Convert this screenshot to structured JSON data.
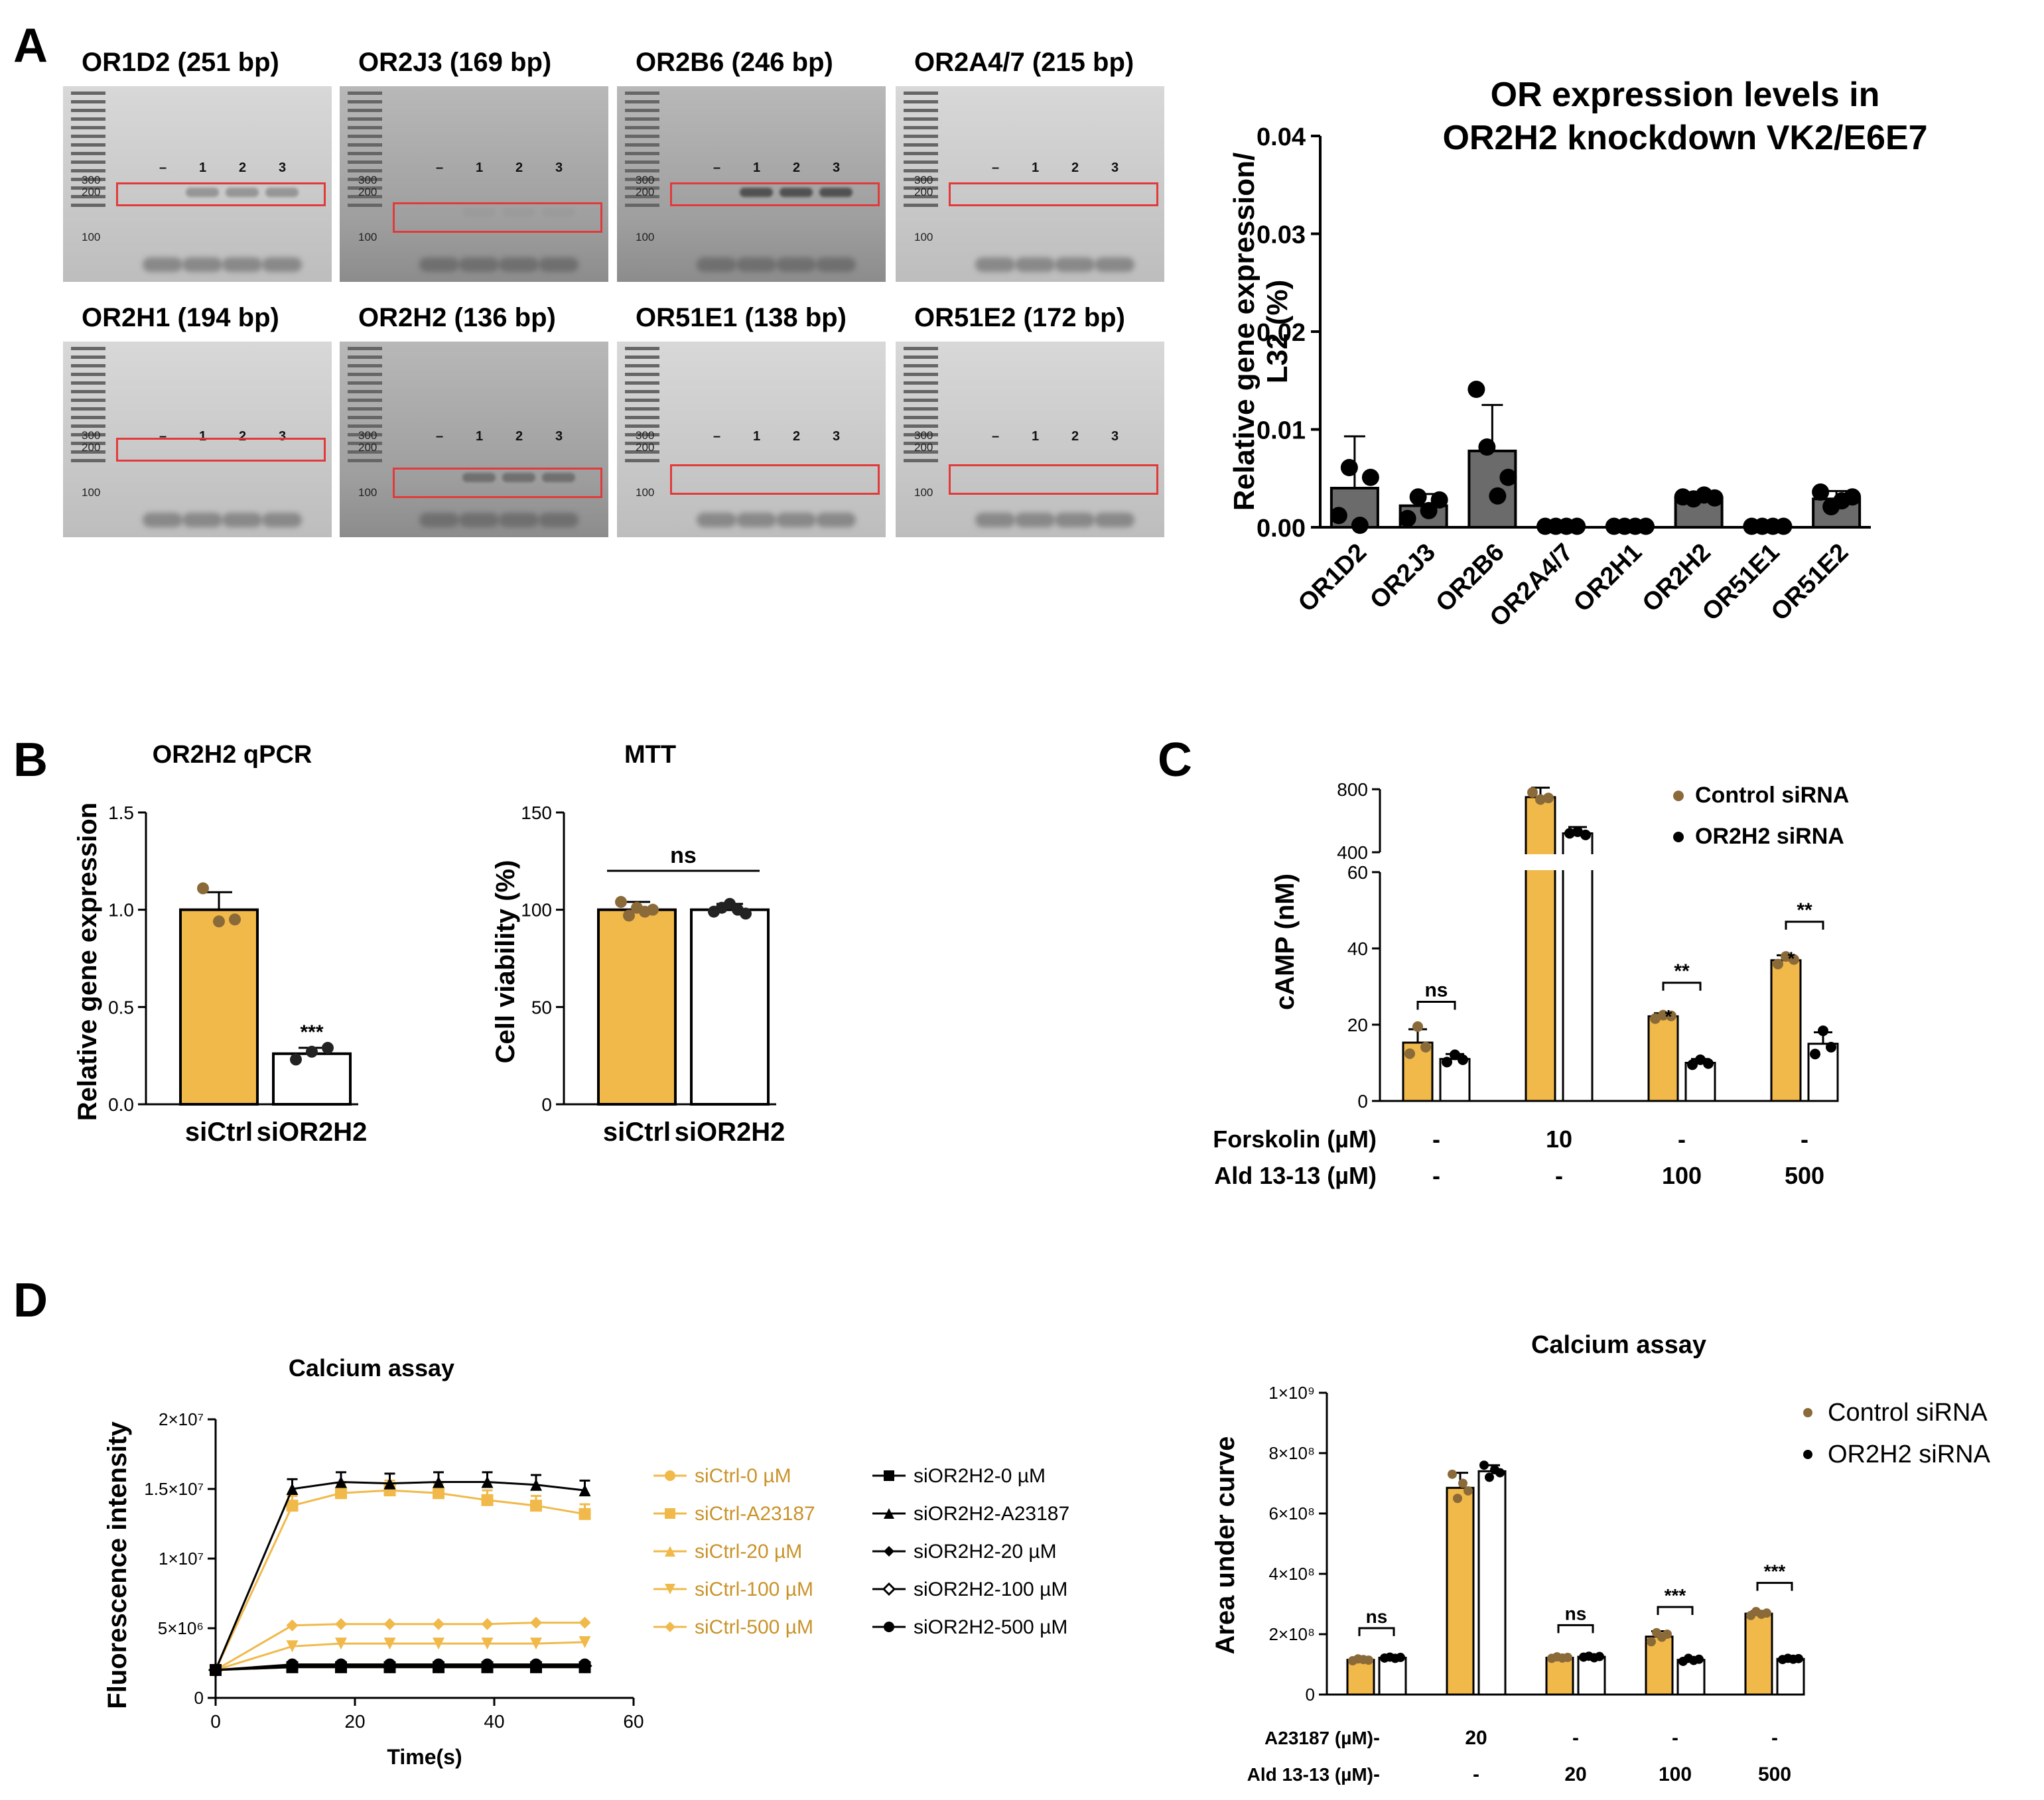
{
  "panels": {
    "A": "A",
    "B": "B",
    "C": "C",
    "D": "D"
  },
  "colors": {
    "gold": "#f0b94a",
    "gold_dot": "#8b6a3a",
    "dark": "#555555",
    "black": "#000000",
    "red": "#e23a3a"
  },
  "gels": [
    {
      "title": "OR1D2 (251 bp)",
      "markers": [
        "300",
        "200",
        "100"
      ],
      "lanes": [
        "–",
        "1",
        "2",
        "3"
      ],
      "band_intensity": 0.45,
      "band_position": "300-200"
    },
    {
      "title": "OR2J3 (169 bp)",
      "markers": [
        "300",
        "200",
        "100"
      ],
      "lanes": [
        "–",
        "1",
        "2",
        "3"
      ],
      "band_intensity": 0.05,
      "band_position": "200"
    },
    {
      "title": "OR2B6 (246 bp)",
      "markers": [
        "300",
        "200",
        "100"
      ],
      "lanes": [
        "–",
        "1",
        "2",
        "3"
      ],
      "band_intensity": 0.95,
      "band_position": "300-200"
    },
    {
      "title": "OR2A4/7 (215 bp)",
      "markers": [
        "300",
        "200",
        "100"
      ],
      "lanes": [
        "–",
        "1",
        "2",
        "3"
      ],
      "band_intensity": 0.0,
      "band_position": "200"
    },
    {
      "title": "OR2H1 (194 bp)",
      "markers": [
        "300",
        "200",
        "100"
      ],
      "lanes": [
        "–",
        "1",
        "2",
        "3"
      ],
      "band_intensity": 0.0,
      "band_position": "200"
    },
    {
      "title": "OR2H2 (136 bp)",
      "markers": [
        "300",
        "200",
        "100"
      ],
      "lanes": [
        "–",
        "1",
        "2",
        "3"
      ],
      "band_intensity": 0.55,
      "band_position": "136"
    },
    {
      "title": "OR51E1 (138 bp)",
      "markers": [
        "300",
        "200",
        "100"
      ],
      "lanes": [
        "–",
        "1",
        "2",
        "3"
      ],
      "band_intensity": 0.0,
      "band_position": "138"
    },
    {
      "title": "OR51E2 (172 bp)",
      "markers": [
        "300",
        "200",
        "100"
      ],
      "lanes": [
        "–",
        "1",
        "2",
        "3"
      ],
      "band_intensity": 0.0,
      "band_position": "172"
    }
  ],
  "chart_data": [
    {
      "id": "A_bar",
      "type": "bar",
      "title": "OR expression levels in OR2H2 knockdown VK2/E6E7",
      "title_lines": [
        "OR expression levels in",
        "OR2H2 knockdown VK2/E6E7"
      ],
      "ylabel_lines": [
        "Relative gene expression/",
        "L32 (%)"
      ],
      "categories": [
        "OR1D2",
        "OR2J3",
        "OR2B6",
        "OR2A4/7",
        "OR2H1",
        "OR2H2",
        "OR51E1",
        "OR51E2"
      ],
      "values": [
        0.004,
        0.0022,
        0.0078,
        0.0001,
        0.0001,
        0.003,
        0.0001,
        0.0029
      ],
      "errors": [
        0.0053,
        0.0012,
        0.0047,
        0.0001,
        0.0001,
        0.0003,
        0.0001,
        0.0008
      ],
      "points": [
        [
          0.0012,
          0.0061,
          0.0002,
          0.0051
        ],
        [
          0.0009,
          0.0031,
          0.0017,
          0.0028
        ],
        [
          0.0141,
          0.0082,
          0.0032,
          0.0051
        ],
        [
          0.0001,
          0.0001,
          0.0001,
          0.0001
        ],
        [
          0.0001,
          0.0001,
          0.0001,
          0.0001
        ],
        [
          0.0031,
          0.0029,
          0.0033,
          0.003
        ],
        [
          0.0001,
          0.0001,
          0.0001,
          0.0001
        ],
        [
          0.0036,
          0.0021,
          0.0027,
          0.0031
        ]
      ],
      "yticks": [
        "0.00",
        "0.01",
        "0.02",
        "0.03",
        "0.04"
      ],
      "ylim": [
        0,
        0.04
      ]
    },
    {
      "id": "B_qpcr",
      "type": "bar",
      "title": "OR2H2 qPCR",
      "ylabel": "Relative gene expression",
      "categories": [
        "siCtrl",
        "siOR2H2"
      ],
      "values": [
        1.0,
        0.26
      ],
      "errors": [
        0.09,
        0.03
      ],
      "points": [
        [
          1.11,
          0.94,
          0.95
        ],
        [
          0.23,
          0.27,
          0.29
        ]
      ],
      "yticks": [
        "0.0",
        "0.5",
        "1.0",
        "1.5"
      ],
      "ylim": [
        0,
        1.5
      ],
      "significance": "***"
    },
    {
      "id": "B_mtt",
      "type": "bar",
      "title": "MTT",
      "ylabel": "Cell viability (%)",
      "categories": [
        "siCtrl",
        "siOR2H2"
      ],
      "values": [
        100,
        100
      ],
      "errors": [
        4,
        3
      ],
      "points": [
        [
          104,
          97,
          101,
          99,
          100
        ],
        [
          99,
          101,
          103,
          100,
          98
        ]
      ],
      "yticks": [
        "0",
        "50",
        "100",
        "150"
      ],
      "ylim": [
        0,
        150
      ],
      "significance": "ns"
    },
    {
      "id": "C_camp",
      "type": "bar",
      "ylabel": "cAMP (nM)",
      "series": [
        {
          "name": "Control siRNA",
          "values": [
            15.3,
            750,
            22.2,
            36.9
          ],
          "errors": [
            3.5,
            60,
            0.8,
            1.3
          ],
          "points": [
            [
              12.4,
              19.5,
              14.1
            ],
            [
              780,
              735,
              745
            ],
            [
              21.6,
              22.5,
              22.3
            ],
            [
              35.9,
              37.9,
              37.1
            ]
          ]
        },
        {
          "name": "OR2H2 siRNA",
          "values": [
            11.0,
            520,
            10.0,
            15.0
          ],
          "errors": [
            1.3,
            40,
            1.0,
            3.0
          ],
          "points": [
            [
              10.2,
              12.1,
              10.8
            ],
            [
              520,
              530,
              510
            ],
            [
              9.5,
              10.8,
              9.8
            ],
            [
              12.3,
              18.4,
              14.1
            ]
          ]
        }
      ],
      "yticks_low": [
        "0",
        "20",
        "40",
        "60"
      ],
      "yticks_high": [
        "400",
        "800"
      ],
      "forskolin_label": "Forskolin (µM)",
      "forskolin": [
        "-",
        "10",
        "-",
        "-"
      ],
      "ald_label": "Ald 13-13 (µM)",
      "ald": [
        "-",
        "-",
        "100",
        "500"
      ],
      "sig_groups": [
        "ns",
        "",
        "**",
        "**"
      ],
      "sig_bar": [
        "",
        "",
        "*",
        "*"
      ]
    },
    {
      "id": "D_line",
      "type": "line",
      "title": "Calcium assay",
      "xlabel": "Time(s)",
      "ylabel": "Fluorescence intensity",
      "x": [
        0,
        11,
        18,
        25,
        32,
        39,
        46,
        53
      ],
      "xticks": [
        "0",
        "20",
        "40",
        "60"
      ],
      "yticks": [
        "0",
        "5×10⁶",
        "1×10⁷",
        "1.5×10⁷",
        "2×10⁷"
      ],
      "ylim": [
        0,
        20000000
      ],
      "xlim": [
        0,
        60
      ],
      "series": [
        {
          "name": "siCtrl-0 µM",
          "color": "#f0b94a",
          "marker": "circle",
          "values": [
            2000000,
            2200000,
            2200000,
            2200000,
            2200000,
            2200000,
            2200000,
            2200000
          ]
        },
        {
          "name": "siCtrl-A23187",
          "color": "#f0b94a",
          "marker": "square",
          "values": [
            2000000,
            13800000,
            14700000,
            14900000,
            14700000,
            14200000,
            13800000,
            13200000
          ]
        },
        {
          "name": "siCtrl-20 µM",
          "color": "#f0b94a",
          "marker": "triangle",
          "values": [
            2000000,
            2400000,
            2400000,
            2400000,
            2400000,
            2400000,
            2400000,
            2400000
          ]
        },
        {
          "name": "siCtrl-100 µM",
          "color": "#f0b94a",
          "marker": "tri-down",
          "values": [
            2000000,
            3700000,
            3900000,
            3900000,
            3900000,
            3900000,
            3900000,
            4000000
          ]
        },
        {
          "name": "siCtrl-500 µM",
          "color": "#f0b94a",
          "marker": "diamond",
          "values": [
            2000000,
            5200000,
            5300000,
            5300000,
            5300000,
            5300000,
            5400000,
            5400000
          ]
        },
        {
          "name": "siOR2H2-0 µM",
          "color": "#000000",
          "marker": "square",
          "values": [
            2000000,
            2200000,
            2200000,
            2200000,
            2200000,
            2200000,
            2200000,
            2200000
          ]
        },
        {
          "name": "siOR2H2-A23187",
          "color": "#000000",
          "marker": "triangle",
          "values": [
            2000000,
            15000000,
            15500000,
            15400000,
            15500000,
            15500000,
            15300000,
            14900000
          ]
        },
        {
          "name": "siOR2H2-20 µM",
          "color": "#000000",
          "marker": "diamond",
          "values": [
            2000000,
            2300000,
            2300000,
            2300000,
            2300000,
            2300000,
            2300000,
            2300000
          ]
        },
        {
          "name": "siOR2H2-100 µM",
          "color": "#000000",
          "marker": "diamond-open",
          "values": [
            2000000,
            2300000,
            2300000,
            2300000,
            2300000,
            2300000,
            2300000,
            2300000
          ]
        },
        {
          "name": "siOR2H2-500 µM",
          "color": "#000000",
          "marker": "circle",
          "values": [
            2000000,
            2400000,
            2400000,
            2400000,
            2400000,
            2400000,
            2400000,
            2400000
          ]
        }
      ]
    },
    {
      "id": "D_bar",
      "type": "bar",
      "title": "Calcium assay",
      "ylabel": "Area under curve",
      "series": [
        {
          "name": "Control siRNA",
          "values": [
            115000000,
            685000000,
            122000000,
            192000000,
            268000000
          ],
          "errors": [
            5000000,
            50000000,
            5000000,
            18000000,
            8000000
          ],
          "points": [
            [
              112000000,
              118000000,
              116000000,
              114000000
            ],
            [
              730000000,
              650000000,
              700000000,
              675000000
            ],
            [
              120000000,
              125000000,
              121000000,
              123000000
            ],
            [
              175000000,
              205000000,
              190000000,
              200000000
            ],
            [
              262000000,
              275000000,
              266000000,
              270000000
            ]
          ]
        },
        {
          "name": "OR2H2 siRNA",
          "values": [
            122000000,
            740000000,
            125000000,
            115000000,
            118000000
          ],
          "errors": [
            4000000,
            20000000,
            4000000,
            6000000,
            3000000
          ],
          "points": [
            [
              121000000,
              124000000,
              120000000,
              123000000
            ],
            [
              760000000,
              720000000,
              745000000,
              735000000
            ],
            [
              124000000,
              127000000,
              122000000,
              126000000
            ],
            [
              110000000,
              120000000,
              113000000,
              117000000
            ],
            [
              116000000,
              120000000,
              117000000,
              119000000
            ]
          ]
        }
      ],
      "yticks": [
        "0",
        "2×10⁸",
        "4×10⁸",
        "6×10⁸",
        "8×10⁸",
        "1×10⁹"
      ],
      "ylim": [
        0,
        1000000000
      ],
      "a23187_label": "A23187 (µM)",
      "a23187": [
        "-",
        "20",
        "-",
        "-",
        "-"
      ],
      "ald_label": "Ald 13-13 (µM)",
      "ald": [
        "-",
        "-",
        "20",
        "100",
        "500"
      ],
      "sig_groups": [
        "ns",
        "",
        "ns",
        "***",
        "***"
      ]
    }
  ]
}
